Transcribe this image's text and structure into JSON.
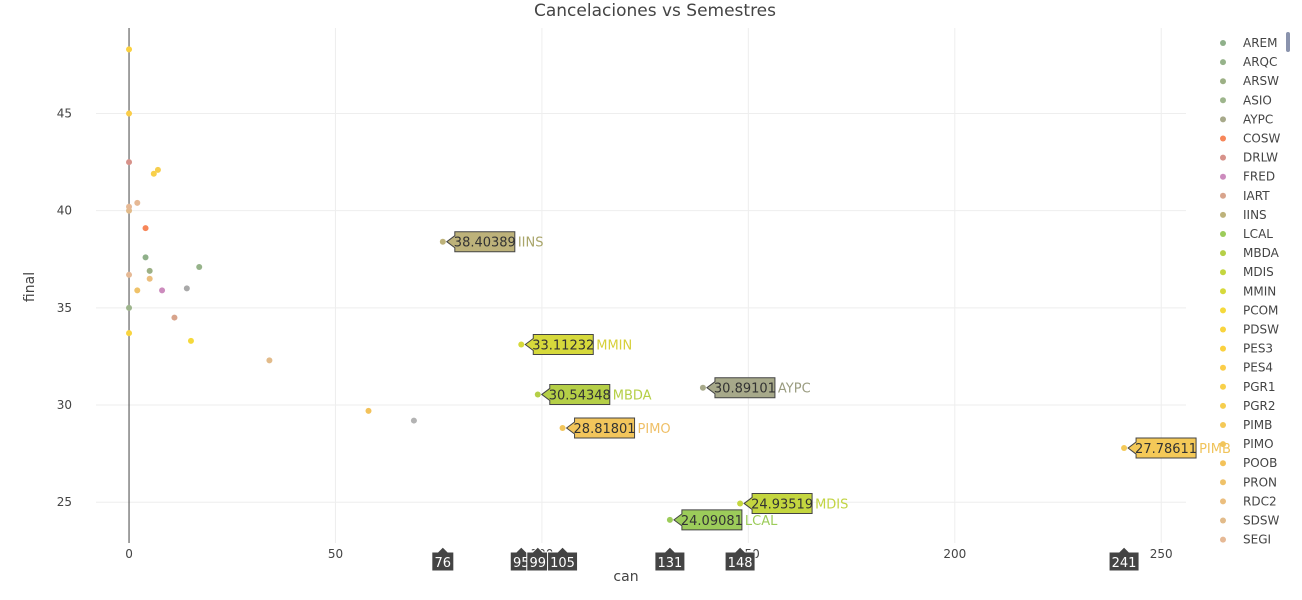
{
  "chart_data": {
    "type": "scatter",
    "title": "Cancelaciones vs Semestres",
    "xlabel": "can",
    "ylabel": "final",
    "xlim": [
      -8,
      256
    ],
    "ylim": [
      22.9,
      49.4
    ],
    "x_ticks": [
      0,
      50,
      100,
      150,
      200,
      250
    ],
    "y_ticks": [
      25,
      30,
      35,
      40,
      45
    ],
    "grid": true,
    "legend_position": "right",
    "series": [
      {
        "name": "AREM",
        "color": "#8fb08a",
        "points": [
          {
            "x": 4,
            "y": 37.6
          }
        ]
      },
      {
        "name": "ARQC",
        "color": "#96b38a",
        "points": [
          {
            "x": 17,
            "y": 37.1
          }
        ]
      },
      {
        "name": "ARSW",
        "color": "#9cb085",
        "points": [
          {
            "x": 5,
            "y": 36.9
          }
        ]
      },
      {
        "name": "ASIO",
        "color": "#9db58c",
        "points": [
          {
            "x": 0,
            "y": 35.0
          }
        ]
      },
      {
        "name": "AYPC",
        "color": "#a7a98a",
        "points": [
          {
            "x": 139,
            "y": 30.89101
          }
        ]
      },
      {
        "name": "COSW",
        "color": "#f78659",
        "points": [
          {
            "x": 4,
            "y": 39.1
          }
        ]
      },
      {
        "name": "DRLW",
        "color": "#d7928a",
        "points": [
          {
            "x": 0,
            "y": 42.5
          }
        ]
      },
      {
        "name": "FRED",
        "color": "#cc8bbd",
        "points": [
          {
            "x": 8,
            "y": 35.9
          }
        ]
      },
      {
        "name": "IART",
        "color": "#d8a48c",
        "points": [
          {
            "x": 11,
            "y": 34.5
          }
        ]
      },
      {
        "name": "IINS",
        "color": "#bdb27a",
        "points": [
          {
            "x": 76,
            "y": 38.40389
          }
        ]
      },
      {
        "name": "LCAL",
        "color": "#9ccc5a",
        "points": [
          {
            "x": 131,
            "y": 24.09081
          }
        ]
      },
      {
        "name": "MBDA",
        "color": "#b5cf47",
        "points": [
          {
            "x": 99,
            "y": 30.54348
          }
        ]
      },
      {
        "name": "MDIS",
        "color": "#c4d63f",
        "points": [
          {
            "x": 148,
            "y": 24.93519
          }
        ]
      },
      {
        "name": "MMIN",
        "color": "#d6d93b",
        "points": [
          {
            "x": 95,
            "y": 33.11232
          }
        ]
      },
      {
        "name": "PCOM",
        "color": "#f5d93b",
        "points": [
          {
            "x": 15,
            "y": 33.3
          }
        ]
      },
      {
        "name": "PDSW",
        "color": "#f9d43e",
        "points": [
          {
            "x": 0,
            "y": 33.7
          }
        ]
      },
      {
        "name": "PES3",
        "color": "#fbd13f",
        "points": [
          {
            "x": 0,
            "y": 48.3
          }
        ]
      },
      {
        "name": "PES4",
        "color": "#fbcd48",
        "points": [
          {
            "x": 0,
            "y": 45.0
          }
        ]
      },
      {
        "name": "PGR1",
        "color": "#f8d04a",
        "points": [
          {
            "x": 6,
            "y": 41.9
          }
        ]
      },
      {
        "name": "PGR2",
        "color": "#f6ce4e",
        "points": [
          {
            "x": 7,
            "y": 42.1
          }
        ]
      },
      {
        "name": "PIMB",
        "color": "#f4c958",
        "points": [
          {
            "x": 241,
            "y": 27.78611
          }
        ]
      },
      {
        "name": "PIMO",
        "color": "#f2c55b",
        "points": [
          {
            "x": 105,
            "y": 28.81801
          }
        ]
      },
      {
        "name": "POOB",
        "color": "#f3c25a",
        "points": [
          {
            "x": 58,
            "y": 29.7
          }
        ]
      },
      {
        "name": "PRON",
        "color": "#efc269",
        "points": [
          {
            "x": 2,
            "y": 35.9
          }
        ]
      },
      {
        "name": "RDC2",
        "color": "#ebbe7e",
        "points": [
          {
            "x": 5,
            "y": 36.5
          }
        ]
      },
      {
        "name": "SDSW",
        "color": "#e2bb8a",
        "points": [
          {
            "x": 0,
            "y": 40.0
          },
          {
            "x": 34,
            "y": 32.3
          }
        ]
      },
      {
        "name": "SEGI",
        "color": "#e6b995",
        "points": [
          {
            "x": 0,
            "y": 36.7
          },
          {
            "x": 0,
            "y": 40.2
          },
          {
            "x": 2,
            "y": 40.4
          }
        ]
      }
    ],
    "extra_points": [
      {
        "x": 14,
        "y": 36.0,
        "color": "#a9a9a9"
      },
      {
        "x": 69,
        "y": 29.2,
        "color": "#b3b3b3"
      }
    ],
    "hover_labels": [
      {
        "series": "IINS",
        "x": 76,
        "y": 38.40389,
        "value": "38.40389",
        "label_color": "#a9a56a"
      },
      {
        "series": "MMIN",
        "x": 95,
        "y": 33.11232,
        "value": "33.11232",
        "label_color": "#d7d03a"
      },
      {
        "series": "MBDA",
        "x": 99,
        "y": 30.54348,
        "value": "30.54348",
        "label_color": "#b5cf47"
      },
      {
        "series": "AYPC",
        "x": 139,
        "y": 30.89101,
        "value": "30.89101",
        "label_color": "#9a9c80"
      },
      {
        "series": "PIMO",
        "x": 105,
        "y": 28.81801,
        "value": "28.81801",
        "label_color": "#efc068"
      },
      {
        "series": "PIMB",
        "x": 241,
        "y": 27.78611,
        "value": "27.78611",
        "label_color": "#f0c35a"
      },
      {
        "series": "MDIS",
        "x": 148,
        "y": 24.93519,
        "value": "24.93519",
        "label_color": "#c2d443"
      },
      {
        "series": "LCAL",
        "x": 131,
        "y": 24.09081,
        "value": "24.09081",
        "label_color": "#9ccc5a"
      }
    ],
    "x_spike_labels": [
      {
        "x": 76,
        "text": "76"
      },
      {
        "x": 95,
        "text": "95"
      },
      {
        "x": 99,
        "text": "99"
      },
      {
        "x": 105,
        "text": "105"
      },
      {
        "x": 131,
        "text": "131"
      },
      {
        "x": 148,
        "text": "148"
      },
      {
        "x": 241,
        "text": "241"
      }
    ]
  }
}
